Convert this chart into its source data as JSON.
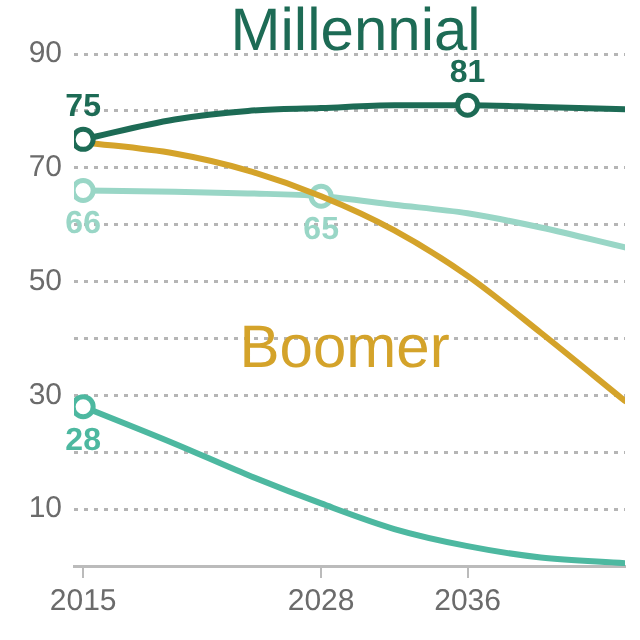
{
  "chart_data": {
    "type": "line",
    "x": [
      2015,
      2020,
      2024,
      2028,
      2032,
      2036,
      2040,
      2044.6
    ],
    "series": [
      {
        "name": "Millennial",
        "color": "#1d6b55",
        "values": [
          75,
          78.5,
          80,
          80.5,
          81,
          81,
          80.7,
          80.3
        ],
        "value_labels": [
          "75",
          null,
          null,
          null,
          null,
          "81",
          null,
          null
        ]
      },
      {
        "name": "Boomer",
        "color": "#d4a32a",
        "values": [
          74.5,
          72.5,
          69.5,
          65,
          59,
          51,
          41,
          29
        ]
      },
      {
        "color": "#99d6c6",
        "values": [
          66,
          65.8,
          65.5,
          65,
          63.5,
          62,
          59.5,
          56
        ],
        "value_labels": [
          "66",
          null,
          null,
          "65",
          null,
          null,
          null,
          null
        ]
      },
      {
        "color": "#4db8a0",
        "values": [
          28,
          21.5,
          16,
          11,
          6.5,
          3.5,
          1.5,
          0.5
        ],
        "value_labels": [
          "28",
          null,
          null,
          null,
          null,
          null,
          null,
          null
        ]
      }
    ],
    "xlim": [
      2014.5,
      2044.6
    ],
    "xticks": [
      2015,
      2028,
      2036
    ],
    "ylim": [
      0,
      90
    ],
    "yticks": [
      {
        "value": 10,
        "label": "10"
      },
      {
        "value": 20,
        "label": null
      },
      {
        "value": 30,
        "label": "30"
      },
      {
        "value": 40,
        "label": null
      },
      {
        "value": 50,
        "label": "50"
      },
      {
        "value": 60,
        "label": null
      },
      {
        "value": 70,
        "label": "70"
      },
      {
        "value": 80,
        "label": null
      },
      {
        "value": 90,
        "label": "90"
      }
    ],
    "grid": "y",
    "legend": false
  }
}
